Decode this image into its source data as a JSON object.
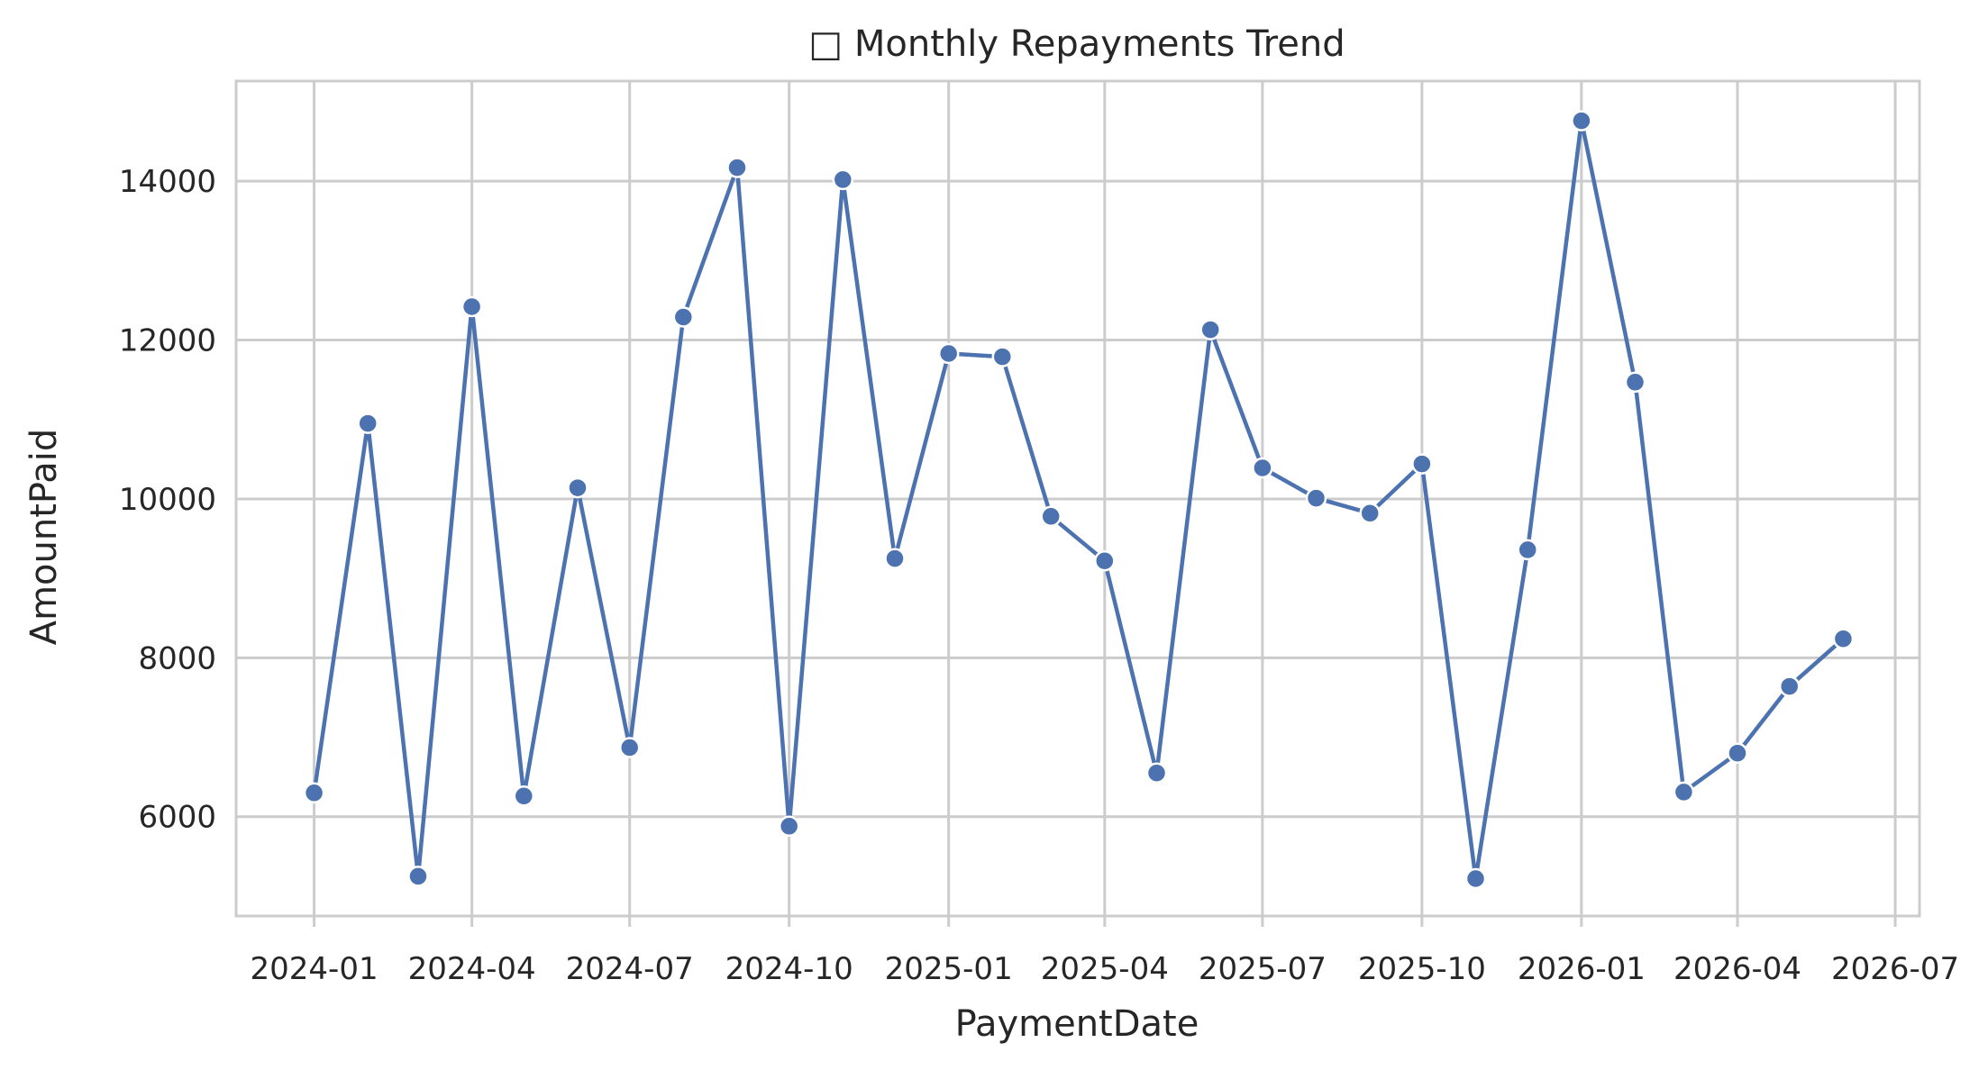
{
  "chart_data": {
    "type": "line",
    "title": "□ Monthly Repayments Trend",
    "xlabel": "PaymentDate",
    "ylabel": "AmountPaid",
    "x": [
      "2024-01",
      "2024-02",
      "2024-03",
      "2024-04",
      "2024-05",
      "2024-06",
      "2024-07",
      "2024-08",
      "2024-09",
      "2024-10",
      "2024-11",
      "2024-12",
      "2025-01",
      "2025-02",
      "2025-03",
      "2025-04",
      "2025-05",
      "2025-06",
      "2025-07",
      "2025-08",
      "2025-09",
      "2025-10",
      "2025-11",
      "2025-12",
      "2026-01",
      "2026-02",
      "2026-03",
      "2026-04",
      "2026-05",
      "2026-06"
    ],
    "series": [
      {
        "values": [
          6300,
          10950,
          5250,
          12420,
          6260,
          10140,
          6870,
          12290,
          14170,
          5880,
          14020,
          9250,
          11830,
          11790,
          9780,
          9220,
          6550,
          12130,
          10390,
          10010,
          9820,
          10440,
          5220,
          9360,
          14760,
          11470,
          6310,
          6800,
          7640,
          8240
        ]
      }
    ],
    "xticks": [
      "2024-01",
      "2024-04",
      "2024-07",
      "2024-10",
      "2025-01",
      "2025-04",
      "2025-07",
      "2025-10",
      "2026-01",
      "2026-04",
      "2026-07"
    ],
    "yticks": [
      6000,
      8000,
      10000,
      12000,
      14000
    ],
    "xlim": [
      "2023-11-17",
      "2026-07-15"
    ],
    "ylim": [
      4750,
      15260
    ],
    "grid": true,
    "colors": {
      "line": "#4c72b0",
      "grid": "#cccccc",
      "spine": "#cccccc",
      "text": "#262626"
    }
  }
}
